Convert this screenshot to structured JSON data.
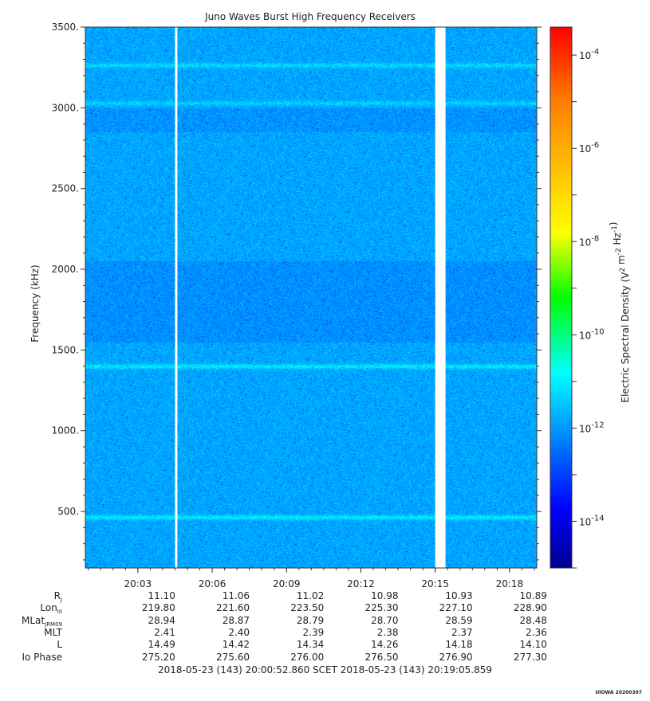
{
  "chart_data": {
    "type": "heatmap",
    "title": "Juno Waves Burst High Frequency Receivers",
    "ylabel": "Frequency (kHz)",
    "ylim": [
      150,
      3500
    ],
    "y_ticks": [
      500,
      1000,
      1500,
      2000,
      2500,
      3000,
      3500
    ],
    "y_tick_labels": [
      "500.",
      "1000.",
      "1500.",
      "2000.",
      "2500.",
      "3000.",
      "3500."
    ],
    "x_ticks": [
      "20:03",
      "20:06",
      "20:09",
      "20:12",
      "20:15",
      "20:18"
    ],
    "x_range": [
      "20:00:52.860",
      "20:19:05.859"
    ],
    "colorbar": {
      "label": "Electric Spectral Density (V^2 m^-2 Hz^-1)",
      "scale": "log",
      "range_exp": [
        -15,
        -3.4
      ],
      "tick_exponents": [
        -4,
        -6,
        -8,
        -10,
        -12,
        -14
      ],
      "tick_labels": [
        "10^-4",
        "10^-6",
        "10^-8",
        "10^-10",
        "10^-12",
        "10^-14"
      ]
    },
    "background_level_exp": -11.8,
    "emission_bands": [
      {
        "freq_khz": 465,
        "level_exp": -11.0
      },
      {
        "freq_khz": 1400,
        "level_exp": -11.0
      },
      {
        "freq_khz": 3030,
        "level_exp": -11.3
      },
      {
        "freq_khz": 3265,
        "level_exp": -11.2
      }
    ],
    "data_gaps": [
      {
        "start": "20:04:30",
        "end": "20:04:35"
      },
      {
        "start": "20:15:00",
        "end": "20:15:25"
      }
    ]
  },
  "ephemeris": {
    "rows": [
      {
        "label": "R",
        "sub": "J",
        "values": [
          "11.10",
          "11.06",
          "11.02",
          "10.98",
          "10.93",
          "10.89"
        ]
      },
      {
        "label": "Lon",
        "sub": "III",
        "values": [
          "219.80",
          "221.60",
          "223.50",
          "225.30",
          "227.10",
          "228.90"
        ]
      },
      {
        "label": "MLat",
        "sub": "JRM09",
        "values": [
          "28.94",
          "28.87",
          "28.79",
          "28.70",
          "28.59",
          "28.48"
        ]
      },
      {
        "label": "MLT",
        "sub": "",
        "values": [
          "2.41",
          "2.40",
          "2.39",
          "2.38",
          "2.37",
          "2.36"
        ]
      },
      {
        "label": "L",
        "sub": "",
        "values": [
          "14.49",
          "14.42",
          "14.34",
          "14.26",
          "14.18",
          "14.10"
        ]
      },
      {
        "label": "Io Phase",
        "sub": "",
        "values": [
          "275.20",
          "275.60",
          "276.00",
          "276.50",
          "276.90",
          "277.30"
        ]
      }
    ]
  },
  "footer": "2018-05-23 (143) 20:00:52.860    SCET    2018-05-23 (143) 20:19:05.859",
  "stamp": "UIOWA 20200307"
}
